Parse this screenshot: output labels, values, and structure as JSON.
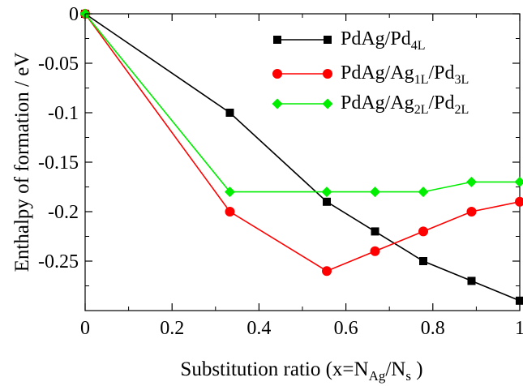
{
  "chart_data": {
    "type": "line",
    "title": "",
    "xlabel": {
      "main": "Substitution ratio (x=N",
      "sub1": "Ag",
      "mid": "/N",
      "sub2": "s",
      "end": " )"
    },
    "ylabel": "Enthalpy of formation / eV",
    "xlim": [
      0,
      1
    ],
    "ylim": [
      -0.3,
      0
    ],
    "x_ticks": [
      {
        "value": 0,
        "label": "0"
      },
      {
        "value": 0.2,
        "label": "0.2"
      },
      {
        "value": 0.4,
        "label": "0.4"
      },
      {
        "value": 0.6,
        "label": "0.6"
      },
      {
        "value": 0.8,
        "label": "0.8"
      },
      {
        "value": 1,
        "label": "1"
      }
    ],
    "y_ticks": [
      {
        "value": 0,
        "label": "0"
      },
      {
        "value": -0.05,
        "label": "-0.05"
      },
      {
        "value": -0.1,
        "label": "-0.1"
      },
      {
        "value": -0.15,
        "label": "-0.15"
      },
      {
        "value": -0.2,
        "label": "-0.2"
      },
      {
        "value": -0.25,
        "label": "-0.25"
      }
    ],
    "grid": false,
    "legend_position": "top-right",
    "series": [
      {
        "name": "PdAg/Pd4L",
        "legend_parts": [
          {
            "t": "PdAg/Pd",
            "sub": false
          },
          {
            "t": "4L",
            "sub": true
          }
        ],
        "color": "#000000",
        "marker": "square",
        "x": [
          0,
          0.333,
          0.556,
          0.667,
          0.778,
          0.889,
          1.0
        ],
        "y": [
          0,
          -0.1,
          -0.19,
          -0.22,
          -0.25,
          -0.27,
          -0.29
        ]
      },
      {
        "name": "PdAg/Ag1L/Pd3L",
        "legend_parts": [
          {
            "t": "PdAg/Ag",
            "sub": false
          },
          {
            "t": "1L",
            "sub": true
          },
          {
            "t": "/Pd",
            "sub": false
          },
          {
            "t": "3L",
            "sub": true
          }
        ],
        "color": "#ff0000",
        "marker": "circle",
        "x": [
          0,
          0.333,
          0.556,
          0.667,
          0.778,
          0.889,
          1.0
        ],
        "y": [
          0,
          -0.2,
          -0.26,
          -0.24,
          -0.22,
          -0.2,
          -0.19
        ]
      },
      {
        "name": "PdAg/Ag2L/Pd2L",
        "legend_parts": [
          {
            "t": "PdAg/Ag",
            "sub": false
          },
          {
            "t": "2L",
            "sub": true
          },
          {
            "t": "/Pd",
            "sub": false
          },
          {
            "t": "2L",
            "sub": true
          }
        ],
        "color": "#00ee00",
        "marker": "diamond",
        "x": [
          0,
          0.333,
          0.556,
          0.667,
          0.778,
          0.889,
          1.0
        ],
        "y": [
          0,
          -0.18,
          -0.18,
          -0.18,
          -0.18,
          -0.17,
          -0.17
        ]
      }
    ]
  }
}
